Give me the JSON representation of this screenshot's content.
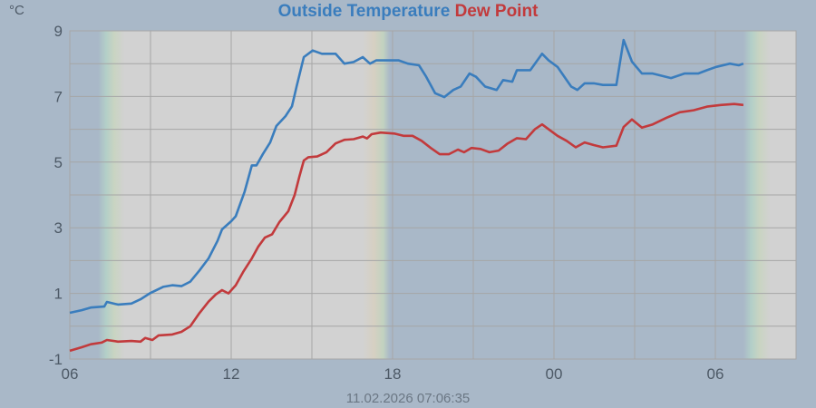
{
  "chart_data": {
    "type": "line",
    "title_parts": [
      "Outside Temperature",
      "Dew Point"
    ],
    "ylabel": "°C",
    "footer": "11.02.2026 07:06:35",
    "x_unit": "hours since 06:00",
    "xlim": [
      0,
      27
    ],
    "ylim": [
      -1,
      9
    ],
    "x_ticks": [
      {
        "v": 0,
        "label": "06"
      },
      {
        "v": 6,
        "label": "12"
      },
      {
        "v": 12,
        "label": "18"
      },
      {
        "v": 18,
        "label": "00"
      },
      {
        "v": 24,
        "label": "06"
      }
    ],
    "x_grid_step": 3,
    "y_ticks": [
      {
        "v": -1,
        "label": "-1"
      },
      {
        "v": 1,
        "label": "1"
      },
      {
        "v": 3,
        "label": "3"
      },
      {
        "v": 5,
        "label": "5"
      },
      {
        "v": 7,
        "label": "7"
      },
      {
        "v": 9,
        "label": "9"
      }
    ],
    "y_grid_step": 1,
    "grid": true,
    "daylight": {
      "day_starts": [
        1.05,
        25.04
      ],
      "day_ends": [
        10.9
      ],
      "transition_hours": 1.0
    },
    "colors": {
      "background": "#a9b8c8",
      "night": "#a9b8c8",
      "day": "#d2d2d2",
      "grid": "#a6a6a6",
      "temp": "#3a7dbd",
      "dew": "#c23a3c"
    },
    "series": [
      {
        "name": "Outside Temperature",
        "color": "#3a7dbd",
        "points": [
          [
            0,
            0.41
          ],
          [
            0.44,
            0.49
          ],
          [
            0.78,
            0.57
          ],
          [
            1.28,
            0.6
          ],
          [
            1.38,
            0.74
          ],
          [
            1.79,
            0.66
          ],
          [
            2.29,
            0.69
          ],
          [
            2.63,
            0.82
          ],
          [
            2.97,
            1.0
          ],
          [
            3.47,
            1.2
          ],
          [
            3.81,
            1.25
          ],
          [
            4.15,
            1.22
          ],
          [
            4.48,
            1.36
          ],
          [
            4.82,
            1.7
          ],
          [
            5.16,
            2.07
          ],
          [
            5.49,
            2.6
          ],
          [
            5.66,
            2.95
          ],
          [
            6.0,
            3.2
          ],
          [
            6.17,
            3.35
          ],
          [
            6.5,
            4.1
          ],
          [
            6.77,
            4.9
          ],
          [
            6.94,
            4.9
          ],
          [
            7.18,
            5.25
          ],
          [
            7.45,
            5.6
          ],
          [
            7.68,
            6.1
          ],
          [
            8.02,
            6.4
          ],
          [
            8.26,
            6.7
          ],
          [
            8.43,
            7.3
          ],
          [
            8.7,
            8.2
          ],
          [
            9.03,
            8.4
          ],
          [
            9.37,
            8.3
          ],
          [
            9.88,
            8.3
          ],
          [
            10.21,
            8.0
          ],
          [
            10.55,
            8.05
          ],
          [
            10.89,
            8.2
          ],
          [
            11.16,
            8.0
          ],
          [
            11.39,
            8.1
          ],
          [
            11.73,
            8.1
          ],
          [
            12.23,
            8.1
          ],
          [
            12.57,
            8.0
          ],
          [
            12.98,
            7.95
          ],
          [
            13.25,
            7.6
          ],
          [
            13.58,
            7.1
          ],
          [
            13.92,
            6.98
          ],
          [
            14.26,
            7.2
          ],
          [
            14.53,
            7.3
          ],
          [
            14.86,
            7.7
          ],
          [
            15.1,
            7.6
          ],
          [
            15.44,
            7.3
          ],
          [
            15.87,
            7.2
          ],
          [
            16.11,
            7.5
          ],
          [
            16.45,
            7.45
          ],
          [
            16.62,
            7.8
          ],
          [
            17.12,
            7.8
          ],
          [
            17.56,
            8.3
          ],
          [
            17.8,
            8.1
          ],
          [
            18.13,
            7.9
          ],
          [
            18.47,
            7.5
          ],
          [
            18.64,
            7.3
          ],
          [
            18.87,
            7.2
          ],
          [
            19.14,
            7.4
          ],
          [
            19.48,
            7.4
          ],
          [
            19.82,
            7.35
          ],
          [
            20.32,
            7.35
          ],
          [
            20.59,
            8.72
          ],
          [
            20.9,
            8.06
          ],
          [
            21.27,
            7.7
          ],
          [
            21.67,
            7.7
          ],
          [
            22.35,
            7.56
          ],
          [
            22.85,
            7.7
          ],
          [
            23.36,
            7.7
          ],
          [
            23.69,
            7.8
          ],
          [
            24.03,
            7.9
          ],
          [
            24.54,
            8.0
          ],
          [
            24.87,
            7.95
          ],
          [
            25.04,
            8.0
          ]
        ]
      },
      {
        "name": "Dew Point",
        "color": "#c23a3c",
        "points": [
          [
            0,
            -0.75
          ],
          [
            0.44,
            -0.64
          ],
          [
            0.78,
            -0.55
          ],
          [
            1.18,
            -0.5
          ],
          [
            1.38,
            -0.42
          ],
          [
            1.79,
            -0.47
          ],
          [
            2.29,
            -0.45
          ],
          [
            2.63,
            -0.47
          ],
          [
            2.8,
            -0.36
          ],
          [
            3.07,
            -0.42
          ],
          [
            3.3,
            -0.28
          ],
          [
            3.81,
            -0.25
          ],
          [
            4.15,
            -0.17
          ],
          [
            4.48,
            0.0
          ],
          [
            4.82,
            0.4
          ],
          [
            5.16,
            0.75
          ],
          [
            5.43,
            0.97
          ],
          [
            5.66,
            1.1
          ],
          [
            5.9,
            1.0
          ],
          [
            6.17,
            1.25
          ],
          [
            6.44,
            1.65
          ],
          [
            6.77,
            2.07
          ],
          [
            7.01,
            2.43
          ],
          [
            7.25,
            2.7
          ],
          [
            7.52,
            2.8
          ],
          [
            7.79,
            3.17
          ],
          [
            8.12,
            3.5
          ],
          [
            8.36,
            4.0
          ],
          [
            8.53,
            4.55
          ],
          [
            8.7,
            5.05
          ],
          [
            8.87,
            5.15
          ],
          [
            9.2,
            5.17
          ],
          [
            9.54,
            5.3
          ],
          [
            9.88,
            5.57
          ],
          [
            10.21,
            5.68
          ],
          [
            10.55,
            5.7
          ],
          [
            10.89,
            5.78
          ],
          [
            11.05,
            5.72
          ],
          [
            11.22,
            5.85
          ],
          [
            11.56,
            5.9
          ],
          [
            12.06,
            5.87
          ],
          [
            12.4,
            5.8
          ],
          [
            12.74,
            5.8
          ],
          [
            13.08,
            5.65
          ],
          [
            13.42,
            5.43
          ],
          [
            13.75,
            5.24
          ],
          [
            14.09,
            5.24
          ],
          [
            14.43,
            5.38
          ],
          [
            14.66,
            5.3
          ],
          [
            14.93,
            5.43
          ],
          [
            15.27,
            5.4
          ],
          [
            15.6,
            5.3
          ],
          [
            15.94,
            5.35
          ],
          [
            16.28,
            5.57
          ],
          [
            16.62,
            5.73
          ],
          [
            16.96,
            5.7
          ],
          [
            17.29,
            6.0
          ],
          [
            17.56,
            6.15
          ],
          [
            17.8,
            6.0
          ],
          [
            18.13,
            5.8
          ],
          [
            18.47,
            5.65
          ],
          [
            18.81,
            5.45
          ],
          [
            19.14,
            5.6
          ],
          [
            19.48,
            5.52
          ],
          [
            19.82,
            5.45
          ],
          [
            20.32,
            5.5
          ],
          [
            20.59,
            6.07
          ],
          [
            20.9,
            6.3
          ],
          [
            21.27,
            6.05
          ],
          [
            21.67,
            6.15
          ],
          [
            22.18,
            6.35
          ],
          [
            22.68,
            6.52
          ],
          [
            23.19,
            6.58
          ],
          [
            23.69,
            6.69
          ],
          [
            24.2,
            6.74
          ],
          [
            24.7,
            6.77
          ],
          [
            25.04,
            6.74
          ]
        ]
      }
    ]
  }
}
